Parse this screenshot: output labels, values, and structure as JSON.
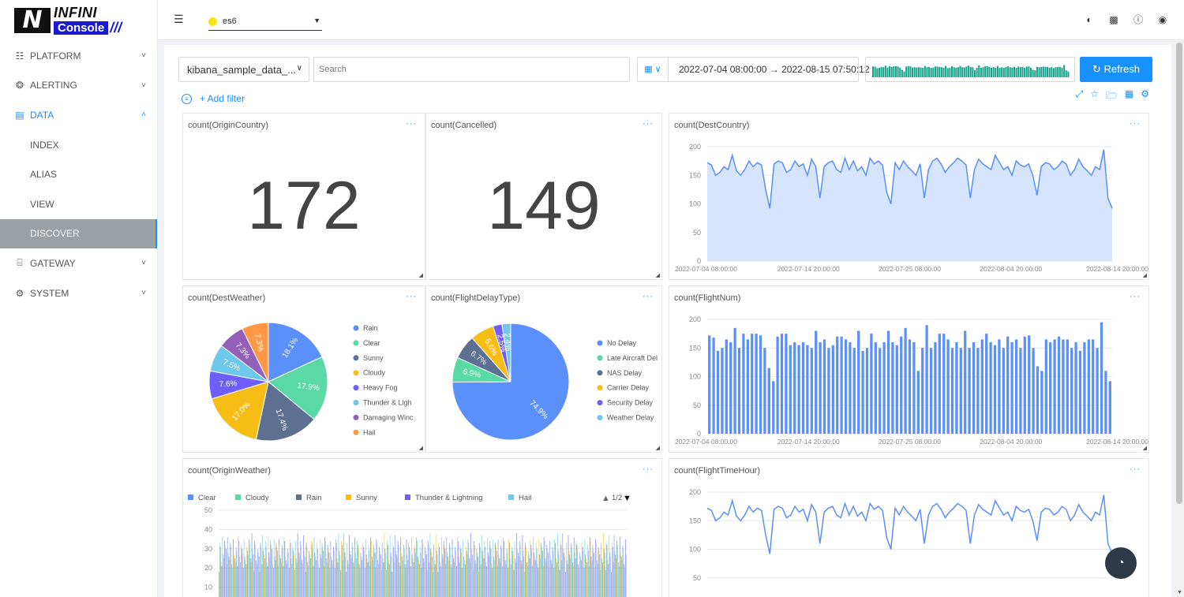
{
  "logo": {
    "mark": "N",
    "top": "INFINI",
    "bottom": "Console",
    "slash": "///"
  },
  "sidebar": {
    "items": [
      {
        "label": "PLATFORM",
        "icon": "platform-icon",
        "glyph": "☷",
        "chev": "⌄",
        "kind": "top"
      },
      {
        "label": "ALERTING",
        "icon": "bell-icon",
        "glyph": "❂",
        "chev": "⌄",
        "kind": "top"
      },
      {
        "label": "DATA",
        "icon": "database-icon",
        "glyph": "▤",
        "chev": "⌃",
        "kind": "active"
      },
      {
        "label": "INDEX",
        "kind": "sub"
      },
      {
        "label": "ALIAS",
        "kind": "sub"
      },
      {
        "label": "VIEW",
        "kind": "sub"
      },
      {
        "label": "DISCOVER",
        "kind": "selected"
      },
      {
        "label": "GATEWAY",
        "icon": "gateway-icon",
        "glyph": "⌸",
        "chev": "⌄",
        "kind": "top"
      },
      {
        "label": "SYSTEM",
        "icon": "gear-icon",
        "glyph": "⚙",
        "chev": "⌄",
        "kind": "top"
      }
    ]
  },
  "header": {
    "cluster": "es6",
    "cluster_color": "#f5e614"
  },
  "query": {
    "index": "kibana_sample_data_...",
    "search_placeholder": "Search",
    "range": "2022-07-04 08:00:00 → 2022-08-15 07:50:12",
    "refresh": "Refresh",
    "add_filter": "+ Add filter"
  },
  "colors": {
    "accent": "#1890ff",
    "line": "#5b8ff9",
    "area": "#d6e4fd",
    "hist": "#16a28c"
  },
  "panels": {
    "p1": {
      "title": "count(OriginCountry)",
      "value": "172"
    },
    "p2": {
      "title": "count(Cancelled)",
      "value": "149"
    },
    "p3": {
      "title": "count(DestCountry)"
    },
    "p4": {
      "title": "count(DestWeather)"
    },
    "p5": {
      "title": "count(FlightDelayType)"
    },
    "p6": {
      "title": "count(FlightNum)"
    },
    "p7": {
      "title": "count(OriginWeather)",
      "pager": "1/2"
    },
    "p8": {
      "title": "count(FlightTimeHour)"
    }
  },
  "chart_data": [
    {
      "id": "dest-country",
      "type": "area",
      "title": "count(DestCountry)",
      "ylim": [
        0,
        200
      ],
      "yticks": [
        0,
        50,
        100,
        150,
        200
      ],
      "xtick_labels": [
        "2022-07-04 08:00:00",
        "2022-07-14 20:00:00",
        "2022-07-25 08:00:00",
        "2022-08-04 20:00:00",
        "2022-08-14 20:00:00"
      ],
      "values": [
        172,
        168,
        150,
        155,
        165,
        160,
        185,
        158,
        150,
        160,
        175,
        165,
        172,
        168,
        125,
        92,
        170,
        175,
        172,
        155,
        160,
        175,
        165,
        170,
        150,
        178,
        165,
        110,
        165,
        172,
        175,
        160,
        155,
        180,
        160,
        175,
        158,
        165,
        150,
        180,
        170,
        175,
        168,
        120,
        100,
        172,
        160,
        175,
        165,
        158,
        150,
        170,
        110,
        160,
        175,
        180,
        170,
        155,
        165,
        172,
        180,
        175,
        168,
        110,
        160,
        178,
        170,
        165,
        160,
        185,
        172,
        160,
        165,
        150,
        175,
        168,
        165,
        170,
        150,
        115,
        165,
        172,
        170,
        160,
        165,
        175,
        170,
        150,
        160,
        178,
        165,
        158,
        150,
        165,
        160,
        195,
        110,
        92
      ]
    },
    {
      "id": "dest-weather",
      "type": "pie",
      "title": "count(DestWeather)",
      "slices": [
        {
          "label": "Rain",
          "value": 18.1,
          "color": "#5b8ff9"
        },
        {
          "label": "Clear",
          "value": 17.9,
          "color": "#5ad8a6"
        },
        {
          "label": "Sunny",
          "value": 17.4,
          "color": "#5d7092"
        },
        {
          "label": "Cloudy",
          "value": 17.0,
          "color": "#f6bd16"
        },
        {
          "label": "Heavy Fog",
          "value": 7.6,
          "color": "#6f5ef9"
        },
        {
          "label": "Thunder & Ligh",
          "value": 7.5,
          "color": "#6dc8ec"
        },
        {
          "label": "Damaging Winc",
          "value": 7.3,
          "color": "#945fb9"
        },
        {
          "label": "Hail",
          "value": 7.3,
          "color": "#ff9845"
        }
      ]
    },
    {
      "id": "flight-delay-type",
      "type": "pie",
      "title": "count(FlightDelayType)",
      "slices": [
        {
          "label": "No Delay",
          "value": 74.9,
          "color": "#5b8ff9"
        },
        {
          "label": "Late Aircraft Del",
          "value": 6.9,
          "color": "#5ad8a6"
        },
        {
          "label": "NAS Delay",
          "value": 6.7,
          "color": "#5d7092"
        },
        {
          "label": "Carrier Delay",
          "value": 6.6,
          "color": "#f6bd16"
        },
        {
          "label": "Security Delay",
          "value": 2.5,
          "color": "#6f5ef9"
        },
        {
          "label": "Weather Delay",
          "value": 2.4,
          "color": "#6dc8ec"
        }
      ]
    },
    {
      "id": "flight-num",
      "type": "bar",
      "title": "count(FlightNum)",
      "ylim": [
        0,
        200
      ],
      "yticks": [
        0,
        50,
        100,
        150,
        200
      ],
      "xtick_labels": [
        "2022-07-04 08:00:00",
        "2022-07-14 20:00:00",
        "2022-07-25 08:00:00",
        "2022-08-04 20:00:00",
        "2022-08-14 20:00:00"
      ],
      "values": [
        172,
        168,
        145,
        150,
        165,
        160,
        185,
        150,
        175,
        165,
        175,
        175,
        172,
        150,
        115,
        92,
        170,
        175,
        175,
        155,
        160,
        155,
        160,
        155,
        150,
        180,
        160,
        165,
        150,
        155,
        170,
        170,
        165,
        160,
        150,
        180,
        145,
        150,
        175,
        160,
        150,
        160,
        180,
        160,
        155,
        170,
        185,
        165,
        160,
        110,
        150,
        190,
        150,
        160,
        175,
        175,
        165,
        150,
        160,
        150,
        180,
        150,
        160,
        150,
        165,
        175,
        160,
        155,
        165,
        150,
        170,
        160,
        165,
        150,
        170,
        172,
        150,
        118,
        110,
        165,
        160,
        165,
        170,
        165,
        165,
        150,
        160,
        145,
        160,
        165,
        165,
        150,
        195,
        110,
        92
      ]
    },
    {
      "id": "origin-weather",
      "type": "bar",
      "title": "count(OriginWeather)",
      "ylim": [
        0,
        50
      ],
      "yticks": [
        10,
        20,
        30,
        40,
        50
      ],
      "series": [
        {
          "name": "Clear",
          "color": "#5b8ff9"
        },
        {
          "name": "Cloudy",
          "color": "#5ad8a6"
        },
        {
          "name": "Rain",
          "color": "#5d7092"
        },
        {
          "name": "Sunny",
          "color": "#f6bd16"
        },
        {
          "name": "Thunder & Lightning",
          "color": "#6f5ef9"
        },
        {
          "name": "Hail",
          "color": "#6dc8ec"
        }
      ]
    },
    {
      "id": "flight-time-hour",
      "type": "line",
      "title": "count(FlightTimeHour)",
      "ylim": [
        0,
        200
      ],
      "yticks": [
        50,
        100,
        150,
        200
      ],
      "values": [
        172,
        168,
        150,
        155,
        165,
        160,
        185,
        158,
        150,
        160,
        175,
        165,
        172,
        168,
        125,
        92,
        170,
        175,
        172,
        155,
        160,
        175,
        165,
        170,
        150,
        178,
        165,
        110,
        165,
        172,
        175,
        160,
        155,
        180,
        160,
        175,
        158,
        165,
        150,
        180,
        170,
        175,
        168,
        120,
        100,
        172,
        160,
        175,
        165,
        158,
        150,
        170,
        110,
        160,
        175,
        180,
        170,
        155,
        165,
        172,
        180,
        175,
        168,
        110,
        160,
        178,
        170,
        165,
        160,
        185,
        172,
        160,
        165,
        150,
        175,
        168,
        165,
        170,
        150,
        115,
        165,
        172,
        170,
        160,
        165,
        175,
        170,
        150,
        160,
        178,
        165,
        158,
        150,
        165,
        160,
        195,
        110,
        92
      ]
    }
  ]
}
